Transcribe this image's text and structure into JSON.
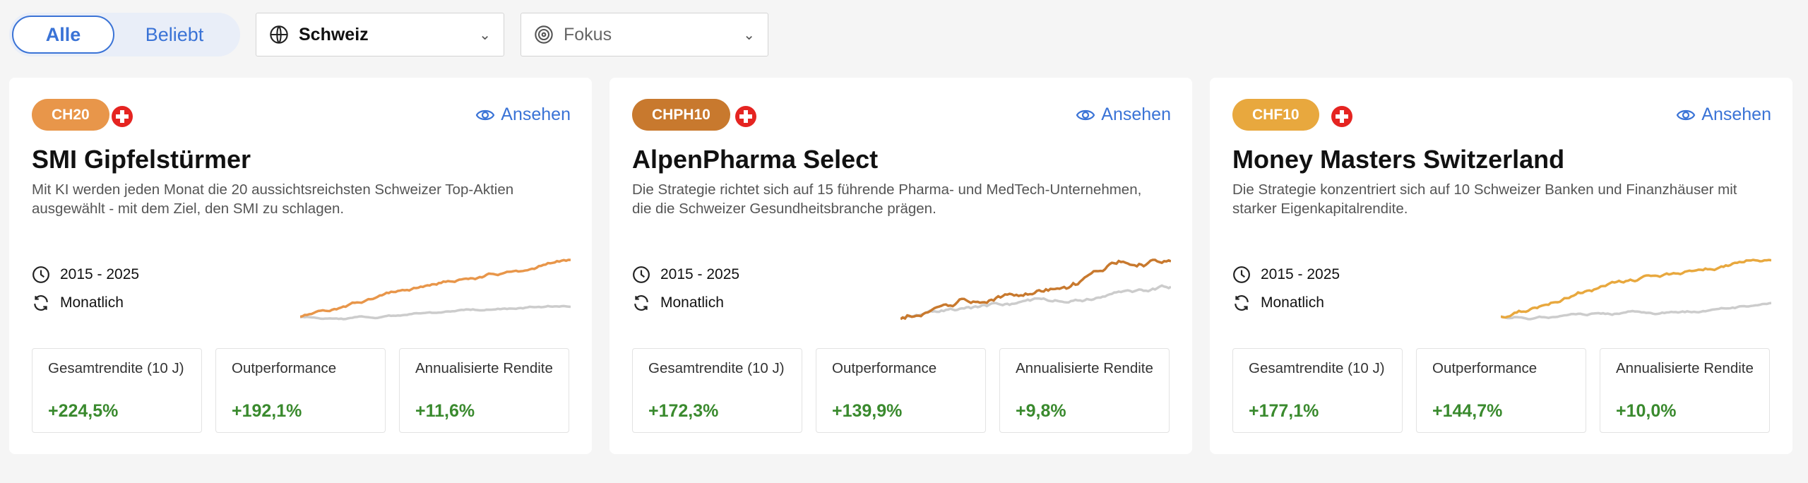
{
  "filters": {
    "tabs": [
      {
        "label": "Alle",
        "active": true
      },
      {
        "label": "Beliebt",
        "active": false
      }
    ],
    "region": {
      "icon": "globe-icon",
      "value": "Schweiz"
    },
    "focus": {
      "icon": "target-icon",
      "placeholder": "Fokus"
    }
  },
  "colors": {
    "accent": "#3a73d6",
    "positive": "#3a8a2e",
    "benchmark": "#cccccc"
  },
  "cards": [
    {
      "badge": "CH20",
      "badge_color": "#e8964a",
      "flag": "switzerland-flag",
      "view": "Ansehen",
      "title": "SMI Gipfelstürmer",
      "description": "Mit KI werden jeden Monat die 20 aussichtsreichsten Schweizer Top-Aktien ausgewählt - mit dem Ziel, den SMI zu schlagen.",
      "period": "2015 - 2025",
      "rebalance": "Monatlich",
      "line_color": "#e8964a",
      "stats": [
        {
          "label": "Gesamtrendite (10 J)",
          "value": "+224,5%"
        },
        {
          "label": "Outperformance",
          "value": "+192,1%"
        },
        {
          "label": "Annualisierte Rendite",
          "value": "+11,6%"
        }
      ]
    },
    {
      "badge": "CHPH10",
      "badge_color": "#c8792e",
      "flag": "switzerland-flag",
      "view": "Ansehen",
      "title": "AlpenPharma Select",
      "description": "Die Strategie richtet sich auf 15 führende Pharma- und MedTech-Unternehmen, die die Schweizer Gesundheitsbranche prägen.",
      "period": "2015 - 2025",
      "rebalance": "Monatlich",
      "line_color": "#c8792e",
      "stats": [
        {
          "label": "Gesamtrendite (10 J)",
          "value": "+172,3%"
        },
        {
          "label": "Outperformance",
          "value": "+139,9%"
        },
        {
          "label": "Annualisierte Rendite",
          "value": "+9,8%"
        }
      ]
    },
    {
      "badge": "CHF10",
      "badge_color": "#e8a83e",
      "flag": "switzerland-flag",
      "view": "Ansehen",
      "title": "Money Masters Switzerland",
      "description": "Die Strategie konzentriert sich auf 10 Schweizer Banken und Finanzhäuser mit starker Eigenkapitalrendite.",
      "period": "2015 - 2025",
      "rebalance": "Monatlich",
      "line_color": "#e8a83e",
      "stats": [
        {
          "label": "Gesamtrendite (10 J)",
          "value": "+177,1%"
        },
        {
          "label": "Outperformance",
          "value": "+144,7%"
        },
        {
          "label": "Annualisierte Rendite",
          "value": "+10,0%"
        }
      ]
    }
  ]
}
